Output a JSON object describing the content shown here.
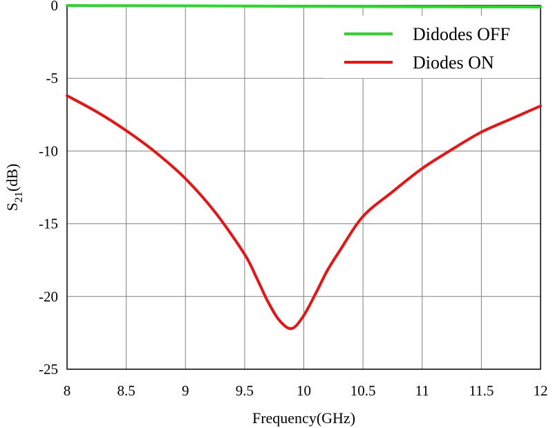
{
  "chart_data": {
    "type": "line",
    "xlabel": "Frequency(GHz)",
    "ylabel": {
      "main": "S",
      "sub": "21",
      "unit": "(dB)"
    },
    "xlim": [
      8,
      12
    ],
    "ylim": [
      -25,
      0
    ],
    "xticks": [
      {
        "value": 8,
        "label": "8"
      },
      {
        "value": 8.5,
        "label": "8.5"
      },
      {
        "value": 9,
        "label": "9"
      },
      {
        "value": 9.5,
        "label": "9.5"
      },
      {
        "value": 10,
        "label": "10"
      },
      {
        "value": 10.5,
        "label": "10.5"
      },
      {
        "value": 11,
        "label": "11"
      },
      {
        "value": 11.5,
        "label": "11.5"
      },
      {
        "value": 12,
        "label": "12"
      }
    ],
    "yticks": [
      {
        "value": 0,
        "label": "0"
      },
      {
        "value": -5,
        "label": "-5"
      },
      {
        "value": -10,
        "label": "-10"
      },
      {
        "value": -15,
        "label": "-15"
      },
      {
        "value": -20,
        "label": "-20"
      },
      {
        "value": -25,
        "label": "-25"
      }
    ],
    "grid": true,
    "legend_position": "top-right",
    "series": [
      {
        "name": "Didodes OFF",
        "color": "#22dd22",
        "x": [
          8,
          9,
          10,
          11,
          12
        ],
        "y": [
          0,
          -0.02,
          -0.05,
          -0.08,
          -0.1
        ]
      },
      {
        "name": "Diodes ON",
        "color": "#ee1111",
        "x": [
          8,
          8.25,
          8.5,
          8.75,
          9,
          9.25,
          9.5,
          9.6,
          9.7,
          9.8,
          9.9,
          10,
          10.1,
          10.2,
          10.3,
          10.5,
          10.75,
          11,
          11.25,
          11.5,
          11.75,
          12
        ],
        "y": [
          -6.2,
          -7.3,
          -8.6,
          -10.1,
          -11.9,
          -14.2,
          -17.1,
          -18.7,
          -20.4,
          -21.7,
          -22.2,
          -21.3,
          -19.8,
          -18.2,
          -16.9,
          -14.5,
          -12.8,
          -11.2,
          -9.9,
          -8.7,
          -7.8,
          -6.9
        ]
      }
    ]
  }
}
